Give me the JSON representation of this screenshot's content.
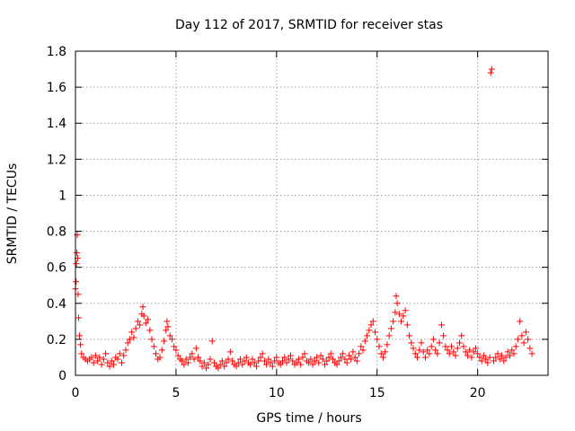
{
  "chart_data": {
    "type": "scatter",
    "title": "Day 112 of 2017, SRMTID for receiver stas",
    "xlabel": "GPS time / hours",
    "ylabel": "SRMTID / TECUs",
    "xlim": [
      0,
      23.5
    ],
    "ylim": [
      0,
      1.8
    ],
    "xticks": [
      0,
      5,
      10,
      15,
      20
    ],
    "yticks": [
      0,
      0.2,
      0.4,
      0.6,
      0.8,
      1,
      1.2,
      1.4,
      1.6,
      1.8
    ],
    "xtick_labels": [
      "0",
      "5",
      "10",
      "15",
      "20"
    ],
    "ytick_labels": [
      "0",
      "0.2",
      "0.4",
      "0.6",
      "0.8",
      "1",
      "1.2",
      "1.4",
      "1.6",
      "1.8"
    ],
    "grid": true,
    "marker": "+",
    "color": "#ff0000",
    "series": [
      {
        "name": "stas",
        "points": [
          [
            0.0,
            0.48
          ],
          [
            0.03,
            0.52
          ],
          [
            0.05,
            0.62
          ],
          [
            0.07,
            0.68
          ],
          [
            0.09,
            0.78
          ],
          [
            0.11,
            0.65
          ],
          [
            0.13,
            0.45
          ],
          [
            0.16,
            0.32
          ],
          [
            0.2,
            0.22
          ],
          [
            0.25,
            0.17
          ],
          [
            0.3,
            0.12
          ],
          [
            0.4,
            0.1
          ],
          [
            0.5,
            0.09
          ],
          [
            0.6,
            0.08
          ],
          [
            0.7,
            0.09
          ],
          [
            0.8,
            0.1
          ],
          [
            0.9,
            0.07
          ],
          [
            1.0,
            0.11
          ],
          [
            1.1,
            0.08
          ],
          [
            1.2,
            0.1
          ],
          [
            1.3,
            0.06
          ],
          [
            1.4,
            0.09
          ],
          [
            1.5,
            0.12
          ],
          [
            1.6,
            0.07
          ],
          [
            1.7,
            0.05
          ],
          [
            1.8,
            0.08
          ],
          [
            1.9,
            0.06
          ],
          [
            2.0,
            0.1
          ],
          [
            2.1,
            0.09
          ],
          [
            2.2,
            0.12
          ],
          [
            2.3,
            0.07
          ],
          [
            2.4,
            0.11
          ],
          [
            2.5,
            0.14
          ],
          [
            2.6,
            0.18
          ],
          [
            2.7,
            0.2
          ],
          [
            2.8,
            0.24
          ],
          [
            2.9,
            0.21
          ],
          [
            3.0,
            0.26
          ],
          [
            3.1,
            0.3
          ],
          [
            3.2,
            0.28
          ],
          [
            3.3,
            0.34
          ],
          [
            3.35,
            0.38
          ],
          [
            3.4,
            0.33
          ],
          [
            3.5,
            0.29
          ],
          [
            3.6,
            0.31
          ],
          [
            3.7,
            0.25
          ],
          [
            3.8,
            0.2
          ],
          [
            3.9,
            0.16
          ],
          [
            4.0,
            0.12
          ],
          [
            4.1,
            0.09
          ],
          [
            4.2,
            0.1
          ],
          [
            4.3,
            0.14
          ],
          [
            4.4,
            0.19
          ],
          [
            4.5,
            0.25
          ],
          [
            4.55,
            0.3
          ],
          [
            4.6,
            0.27
          ],
          [
            4.7,
            0.22
          ],
          [
            4.8,
            0.2
          ],
          [
            4.9,
            0.16
          ],
          [
            5.0,
            0.14
          ],
          [
            5.1,
            0.11
          ],
          [
            5.2,
            0.09
          ],
          [
            5.3,
            0.08
          ],
          [
            5.4,
            0.06
          ],
          [
            5.5,
            0.09
          ],
          [
            5.6,
            0.07
          ],
          [
            5.7,
            0.1
          ],
          [
            5.8,
            0.12
          ],
          [
            5.9,
            0.09
          ],
          [
            6.0,
            0.15
          ],
          [
            6.1,
            0.1
          ],
          [
            6.2,
            0.08
          ],
          [
            6.3,
            0.05
          ],
          [
            6.4,
            0.07
          ],
          [
            6.5,
            0.04
          ],
          [
            6.6,
            0.06
          ],
          [
            6.7,
            0.09
          ],
          [
            6.8,
            0.19
          ],
          [
            6.9,
            0.07
          ],
          [
            7.0,
            0.05
          ],
          [
            7.1,
            0.04
          ],
          [
            7.2,
            0.06
          ],
          [
            7.3,
            0.08
          ],
          [
            7.4,
            0.05
          ],
          [
            7.5,
            0.07
          ],
          [
            7.6,
            0.09
          ],
          [
            7.7,
            0.13
          ],
          [
            7.8,
            0.08
          ],
          [
            7.9,
            0.06
          ],
          [
            8.0,
            0.05
          ],
          [
            8.1,
            0.07
          ],
          [
            8.2,
            0.09
          ],
          [
            8.3,
            0.06
          ],
          [
            8.4,
            0.08
          ],
          [
            8.5,
            0.1
          ],
          [
            8.6,
            0.07
          ],
          [
            8.7,
            0.06
          ],
          [
            8.8,
            0.09
          ],
          [
            8.9,
            0.07
          ],
          [
            9.0,
            0.05
          ],
          [
            9.1,
            0.08
          ],
          [
            9.2,
            0.1
          ],
          [
            9.3,
            0.12
          ],
          [
            9.4,
            0.08
          ],
          [
            9.5,
            0.06
          ],
          [
            9.6,
            0.09
          ],
          [
            9.7,
            0.07
          ],
          [
            9.8,
            0.05
          ],
          [
            9.9,
            0.08
          ],
          [
            10.0,
            0.1
          ],
          [
            10.1,
            0.07
          ],
          [
            10.2,
            0.06
          ],
          [
            10.3,
            0.08
          ],
          [
            10.4,
            0.1
          ],
          [
            10.5,
            0.07
          ],
          [
            10.6,
            0.09
          ],
          [
            10.7,
            0.11
          ],
          [
            10.8,
            0.08
          ],
          [
            10.9,
            0.06
          ],
          [
            11.0,
            0.07
          ],
          [
            11.1,
            0.09
          ],
          [
            11.2,
            0.06
          ],
          [
            11.3,
            0.1
          ],
          [
            11.4,
            0.12
          ],
          [
            11.5,
            0.08
          ],
          [
            11.6,
            0.07
          ],
          [
            11.7,
            0.09
          ],
          [
            11.8,
            0.06
          ],
          [
            11.9,
            0.08
          ],
          [
            12.0,
            0.1
          ],
          [
            12.1,
            0.07
          ],
          [
            12.2,
            0.11
          ],
          [
            12.3,
            0.09
          ],
          [
            12.4,
            0.06
          ],
          [
            12.5,
            0.08
          ],
          [
            12.6,
            0.1
          ],
          [
            12.7,
            0.12
          ],
          [
            12.8,
            0.09
          ],
          [
            12.9,
            0.07
          ],
          [
            13.0,
            0.06
          ],
          [
            13.1,
            0.08
          ],
          [
            13.2,
            0.1
          ],
          [
            13.3,
            0.12
          ],
          [
            13.4,
            0.09
          ],
          [
            13.5,
            0.07
          ],
          [
            13.6,
            0.11
          ],
          [
            13.7,
            0.09
          ],
          [
            13.8,
            0.13
          ],
          [
            13.9,
            0.1
          ],
          [
            14.0,
            0.08
          ],
          [
            14.1,
            0.12
          ],
          [
            14.2,
            0.16
          ],
          [
            14.3,
            0.14
          ],
          [
            14.4,
            0.19
          ],
          [
            14.5,
            0.22
          ],
          [
            14.6,
            0.25
          ],
          [
            14.7,
            0.28
          ],
          [
            14.8,
            0.3
          ],
          [
            14.9,
            0.24
          ],
          [
            15.0,
            0.2
          ],
          [
            15.1,
            0.16
          ],
          [
            15.2,
            0.12
          ],
          [
            15.3,
            0.1
          ],
          [
            15.4,
            0.13
          ],
          [
            15.5,
            0.17
          ],
          [
            15.6,
            0.22
          ],
          [
            15.7,
            0.26
          ],
          [
            15.8,
            0.3
          ],
          [
            15.9,
            0.35
          ],
          [
            15.95,
            0.44
          ],
          [
            16.0,
            0.4
          ],
          [
            16.1,
            0.34
          ],
          [
            16.2,
            0.3
          ],
          [
            16.3,
            0.33
          ],
          [
            16.4,
            0.36
          ],
          [
            16.5,
            0.28
          ],
          [
            16.6,
            0.22
          ],
          [
            16.7,
            0.18
          ],
          [
            16.8,
            0.15
          ],
          [
            16.9,
            0.12
          ],
          [
            17.0,
            0.1
          ],
          [
            17.1,
            0.14
          ],
          [
            17.2,
            0.18
          ],
          [
            17.3,
            0.13
          ],
          [
            17.4,
            0.1
          ],
          [
            17.5,
            0.14
          ],
          [
            17.6,
            0.12
          ],
          [
            17.7,
            0.16
          ],
          [
            17.8,
            0.2
          ],
          [
            17.9,
            0.14
          ],
          [
            18.0,
            0.12
          ],
          [
            18.1,
            0.18
          ],
          [
            18.2,
            0.28
          ],
          [
            18.3,
            0.22
          ],
          [
            18.4,
            0.16
          ],
          [
            18.5,
            0.14
          ],
          [
            18.6,
            0.12
          ],
          [
            18.7,
            0.16
          ],
          [
            18.8,
            0.13
          ],
          [
            18.9,
            0.11
          ],
          [
            19.0,
            0.15
          ],
          [
            19.1,
            0.18
          ],
          [
            19.2,
            0.22
          ],
          [
            19.3,
            0.16
          ],
          [
            19.4,
            0.13
          ],
          [
            19.5,
            0.11
          ],
          [
            19.6,
            0.14
          ],
          [
            19.7,
            0.1
          ],
          [
            19.8,
            0.13
          ],
          [
            19.9,
            0.15
          ],
          [
            20.0,
            0.12
          ],
          [
            20.1,
            0.1
          ],
          [
            20.2,
            0.08
          ],
          [
            20.3,
            0.11
          ],
          [
            20.4,
            0.09
          ],
          [
            20.5,
            0.07
          ],
          [
            20.6,
            0.1
          ],
          [
            20.65,
            1.68
          ],
          [
            20.7,
            1.7
          ],
          [
            20.8,
            0.08
          ],
          [
            20.9,
            0.1
          ],
          [
            21.0,
            0.12
          ],
          [
            21.1,
            0.09
          ],
          [
            21.2,
            0.11
          ],
          [
            21.3,
            0.08
          ],
          [
            21.4,
            0.1
          ],
          [
            21.5,
            0.13
          ],
          [
            21.6,
            0.11
          ],
          [
            21.7,
            0.14
          ],
          [
            21.8,
            0.12
          ],
          [
            21.9,
            0.16
          ],
          [
            22.0,
            0.2
          ],
          [
            22.1,
            0.3
          ],
          [
            22.2,
            0.22
          ],
          [
            22.3,
            0.18
          ],
          [
            22.4,
            0.24
          ],
          [
            22.5,
            0.2
          ],
          [
            22.6,
            0.15
          ],
          [
            22.7,
            0.12
          ]
        ]
      }
    ]
  }
}
